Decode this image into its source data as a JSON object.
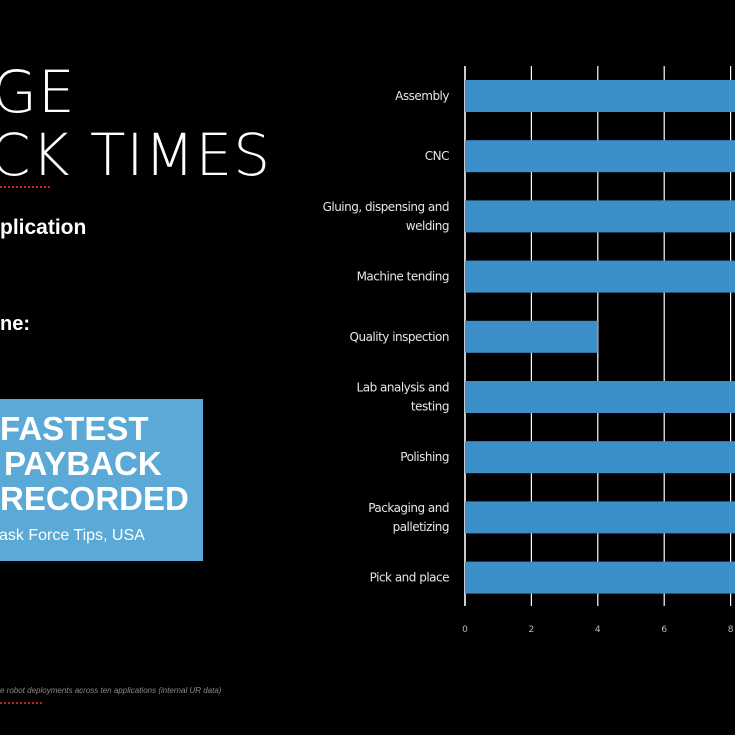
{
  "slide": {
    "title_line1": "GE",
    "title_line2": "CK TIMES",
    "subtitle": "plication",
    "label": "ne:",
    "badge": {
      "line1": "FASTEST",
      "line2": "PAYBACK",
      "line3": "RECORDED",
      "sub": "ask Force Tips, USA"
    },
    "footnote": "e robot deployments across ten applications (internal UR data)"
  },
  "colors": {
    "background": "#000000",
    "bar": "#3d8fc9",
    "badge": "#5aa9d6",
    "grid": "#ffffff"
  },
  "chart_data": {
    "type": "bar",
    "orientation": "horizontal",
    "categories": [
      [
        "Assembly"
      ],
      [
        "CNC"
      ],
      [
        "Gluing, dispensing and",
        "welding"
      ],
      [
        "Machine tending"
      ],
      [
        "Quality inspection"
      ],
      [
        "Lab analysis and",
        "testing"
      ],
      [
        "Polishing"
      ],
      [
        "Packaging and",
        "palletizing"
      ],
      [
        "Pick and place"
      ]
    ],
    "values": [
      9,
      9,
      9,
      9,
      4,
      9,
      9,
      9,
      9
    ],
    "xticks": [
      0,
      2,
      4,
      6,
      8
    ],
    "xlim": [
      0,
      8.2
    ],
    "grid": true,
    "title": "",
    "xlabel": "",
    "ylabel": ""
  }
}
